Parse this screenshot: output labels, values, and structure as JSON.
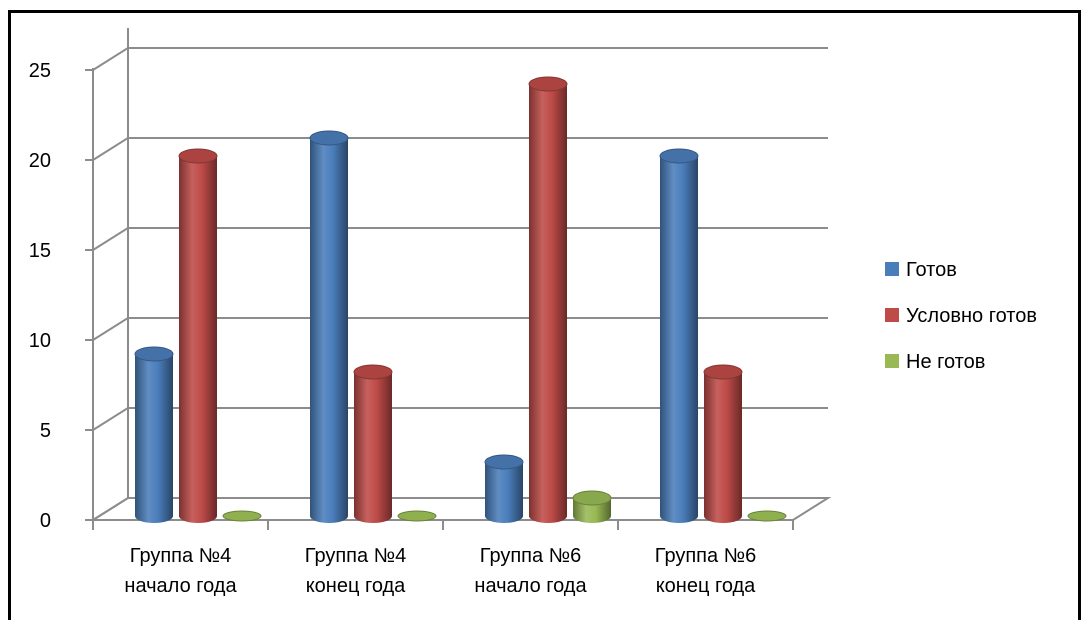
{
  "chart_data": {
    "type": "bar",
    "style": "3d-cylinder",
    "categories": [
      [
        "Группа №4",
        "начало года"
      ],
      [
        "Группа №4",
        "конец года"
      ],
      [
        "Группа №6",
        "начало года"
      ],
      [
        "Группа №6",
        "конец года"
      ]
    ],
    "series": [
      {
        "name": "Готов",
        "color": "#4a7ebb",
        "values": [
          9,
          21,
          3,
          20
        ]
      },
      {
        "name": "Условно готов",
        "color": "#be4b48",
        "values": [
          20,
          8,
          24,
          8
        ]
      },
      {
        "name": "Не готов",
        "color": "#98b954",
        "values": [
          0,
          0,
          1,
          0
        ]
      }
    ],
    "y_ticks": [
      0,
      5,
      10,
      15,
      20,
      25
    ],
    "ylim": [
      0,
      25
    ],
    "grid": true,
    "legend": "right"
  }
}
